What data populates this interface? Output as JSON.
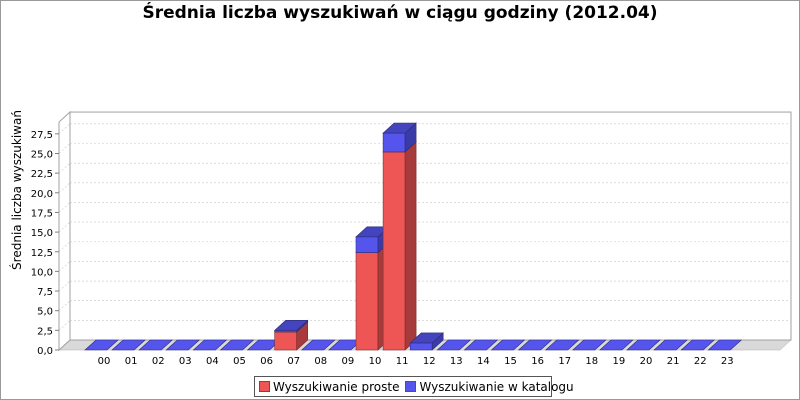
{
  "chart_data": {
    "type": "bar",
    "stacked": true,
    "title": "Średnia liczba wyszukiwań w ciągu godziny (2012.04)",
    "xlabel": "",
    "ylabel": "Średnia liczba wyszukiwań",
    "categories": [
      "00",
      "01",
      "02",
      "03",
      "04",
      "05",
      "06",
      "07",
      "08",
      "09",
      "10",
      "11",
      "12",
      "13",
      "14",
      "15",
      "16",
      "17",
      "18",
      "19",
      "20",
      "21",
      "22",
      "23"
    ],
    "series": [
      {
        "name": "Wyszukiwanie proste",
        "color": "#ee5555",
        "values": [
          0,
          0,
          0,
          0,
          0,
          0,
          0,
          2.3,
          0,
          0,
          12.4,
          25.2,
          0,
          0,
          0,
          0,
          0,
          0,
          0,
          0,
          0,
          0,
          0,
          0
        ]
      },
      {
        "name": "Wyszukiwanie w katalogu",
        "color": "#5555ee",
        "values": [
          0,
          0,
          0,
          0,
          0,
          0,
          0,
          0.2,
          0,
          0,
          2,
          2.4,
          0.9,
          0,
          0,
          0,
          0,
          0,
          0,
          0,
          0,
          0,
          0,
          0
        ]
      }
    ],
    "yticks": [
      "0,0",
      "2,5",
      "5,0",
      "7,5",
      "10,0",
      "12,5",
      "15,0",
      "17,5",
      "20,0",
      "22,5",
      "25,0",
      "27,5"
    ],
    "ylim": [
      0,
      29
    ],
    "grid": true,
    "legend": "bottom"
  }
}
